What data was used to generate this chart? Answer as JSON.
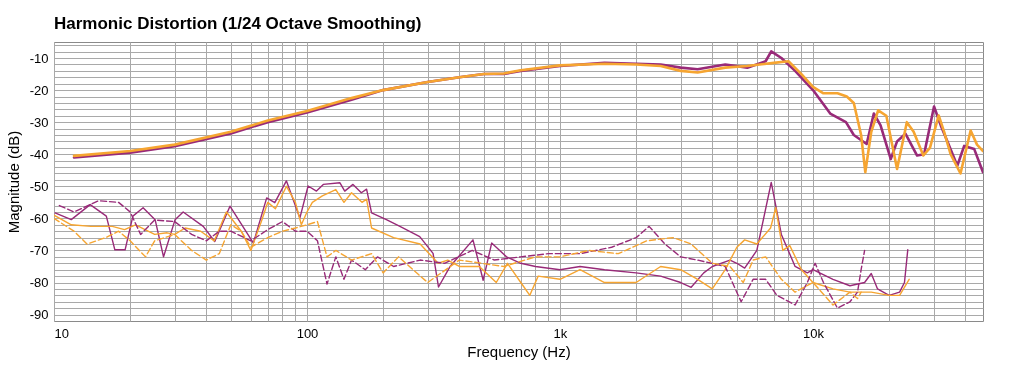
{
  "chart_data": {
    "type": "line",
    "title": "Harmonic Distortion (1/24 Octave Smoothing)",
    "xlabel": "Frequency (Hz)",
    "ylabel": "Magnitude (dB)",
    "log": "x",
    "grid": true,
    "marker": "none",
    "xlim": [
      10,
      47000
    ],
    "xticks": [
      10,
      {
        "value": 20,
        "label": null
      },
      {
        "value": 30,
        "label": null
      },
      {
        "value": 40,
        "label": null
      },
      {
        "value": 50,
        "label": null
      },
      {
        "value": 60,
        "label": null
      },
      {
        "value": 70,
        "label": null
      },
      {
        "value": 80,
        "label": null
      },
      {
        "value": 90,
        "label": null
      },
      100,
      {
        "value": 200,
        "label": null
      },
      {
        "value": 300,
        "label": null
      },
      {
        "value": 400,
        "label": null
      },
      {
        "value": 500,
        "label": null
      },
      {
        "value": 600,
        "label": null
      },
      {
        "value": 700,
        "label": null
      },
      {
        "value": 800,
        "label": null
      },
      {
        "value": 900,
        "label": null
      },
      {
        "value": 1000,
        "label": "1k"
      },
      {
        "value": 2000,
        "label": null
      },
      {
        "value": 3000,
        "label": null
      },
      {
        "value": 4000,
        "label": null
      },
      {
        "value": 5000,
        "label": null
      },
      {
        "value": 6000,
        "label": null
      },
      {
        "value": 7000,
        "label": null
      },
      {
        "value": 8000,
        "label": null
      },
      {
        "value": 9000,
        "label": null
      },
      {
        "value": 10000,
        "label": "10k"
      },
      {
        "value": 20000,
        "label": null
      },
      {
        "value": 30000,
        "label": null
      },
      {
        "value": 40000,
        "label": null
      }
    ],
    "ylim": [
      -92,
      -5
    ],
    "yticks": [
      -90,
      {
        "value": -88,
        "label": null
      },
      {
        "value": -86,
        "label": null
      },
      {
        "value": -84,
        "label": null
      },
      {
        "value": -82,
        "label": null
      },
      -80,
      {
        "value": -78,
        "label": null
      },
      {
        "value": -76,
        "label": null
      },
      {
        "value": -74,
        "label": null
      },
      {
        "value": -72,
        "label": null
      },
      -70,
      {
        "value": -68,
        "label": null
      },
      {
        "value": -66,
        "label": null
      },
      {
        "value": -64,
        "label": null
      },
      {
        "value": -62,
        "label": null
      },
      -60,
      {
        "value": -58,
        "label": null
      },
      {
        "value": -56,
        "label": null
      },
      {
        "value": -54,
        "label": null
      },
      {
        "value": -52,
        "label": null
      },
      -50,
      {
        "value": -48,
        "label": null
      },
      {
        "value": -46,
        "label": null
      },
      {
        "value": -44,
        "label": null
      },
      {
        "value": -42,
        "label": null
      },
      -40,
      {
        "value": -38,
        "label": null
      },
      {
        "value": -36,
        "label": null
      },
      {
        "value": -34,
        "label": null
      },
      {
        "value": -32,
        "label": null
      },
      -30,
      {
        "value": -28,
        "label": null
      },
      {
        "value": -26,
        "label": null
      },
      {
        "value": -24,
        "label": null
      },
      {
        "value": -22,
        "label": null
      },
      -20,
      {
        "value": -18,
        "label": null
      },
      {
        "value": -16,
        "label": null
      },
      {
        "value": -14,
        "label": null
      },
      {
        "value": -12,
        "label": null
      },
      -10,
      {
        "value": -8,
        "label": null
      },
      {
        "value": -6,
        "label": null
      }
    ],
    "series": [
      {
        "color": "#982a78",
        "line_style": "solid",
        "x": [
          12,
          20,
          30,
          50,
          70,
          100,
          150,
          200,
          300,
          400,
          500,
          600,
          700,
          1000,
          1500,
          2000,
          2500,
          3000,
          3500,
          4500,
          5500,
          6500,
          6840,
          7500,
          8500,
          10000,
          11700,
          13500,
          14500,
          16300,
          17400,
          18500,
          20300,
          21500,
          23200,
          25800,
          27500,
          30100,
          32000,
          34000,
          37200,
          39600,
          43400,
          47000
        ],
        "values": [
          -41,
          -39.5,
          -37.5,
          -33.5,
          -30,
          -27,
          -23,
          -20,
          -17.5,
          -16,
          -15,
          -15,
          -14,
          -12.5,
          -11.5,
          -11.8,
          -12,
          -13,
          -13.5,
          -12,
          -13,
          -11,
          -7.9,
          -10,
          -14,
          -20,
          -27.3,
          -30,
          -34,
          -36.8,
          -27.3,
          -31,
          -41.5,
          -36,
          -33.6,
          -40.4,
          -40,
          -25.1,
          -31,
          -36,
          -43.6,
          -37.4,
          -38.4,
          -45.6
        ]
      },
      {
        "color": "#f6a531",
        "line_style": "solid",
        "x": [
          12,
          20,
          30,
          50,
          70,
          100,
          150,
          200,
          300,
          400,
          500,
          600,
          700,
          1000,
          1500,
          2000,
          2500,
          3000,
          3500,
          4500,
          5500,
          7000,
          8000,
          9000,
          10000,
          11000,
          12500,
          13600,
          14500,
          15500,
          16100,
          17000,
          18100,
          19500,
          21500,
          23500,
          25000,
          27300,
          29000,
          31400,
          33000,
          35000,
          38300,
          42000,
          44500,
          47000
        ],
        "values": [
          -40.5,
          -39,
          -37,
          -33,
          -29.5,
          -26.5,
          -22.5,
          -20,
          -17.5,
          -16,
          -15,
          -14.8,
          -13.8,
          -12.3,
          -11.8,
          -12,
          -12.5,
          -14,
          -14.5,
          -13,
          -12.5,
          -11.5,
          -11,
          -15,
          -19,
          -21,
          -21,
          -22,
          -24,
          -34,
          -45.6,
          -33,
          -26.3,
          -28,
          -44.6,
          -30,
          -33,
          -40.4,
          -38,
          -27.9,
          -33,
          -40,
          -46,
          -32.6,
          -37,
          -39
        ]
      },
      {
        "color": "#982a78",
        "line_style": "solid",
        "x": [
          10.1,
          11.7,
          13.9,
          16.1,
          17.4,
          19.1,
          20.5,
          22.5,
          25.1,
          27.1,
          30.1,
          32.4,
          38.9,
          43.2,
          49.6,
          61.4,
          69.3,
          74.6,
          82.9,
          93.7,
          101,
          109,
          116,
          135,
          141,
          152,
          164,
          172,
          180,
          206,
          233,
          279,
          315,
          331,
          367,
          453,
          497,
          537,
          615,
          700,
          800,
          1000,
          1200,
          1500,
          2000,
          2500,
          3000,
          3300,
          3700,
          4000,
          4700,
          5000,
          5370,
          6000,
          6840,
          7500,
          8500,
          9500,
          10000,
          12000,
          14000,
          16000,
          17000,
          18000,
          20000,
          22000,
          23000,
          23700
        ],
        "values": [
          -58.3,
          -60.4,
          -55.7,
          -59.3,
          -69.8,
          -69.8,
          -59.3,
          -56.7,
          -60.4,
          -72,
          -60.4,
          -58,
          -62.5,
          -67.2,
          -56.2,
          -67.7,
          -53.6,
          -55.1,
          -48.3,
          -59.9,
          -49.9,
          -51.5,
          -49.4,
          -48.9,
          -51.5,
          -49.4,
          -52,
          -50.9,
          -58.3,
          -60.4,
          -62.5,
          -65.7,
          -70.9,
          -81.4,
          -75.1,
          -66.7,
          -79.3,
          -67.7,
          -72,
          -74,
          -75,
          -76,
          -75,
          -76,
          -77,
          -78,
          -80,
          -81.5,
          -77,
          -75,
          -73,
          -74,
          -75.5,
          -70,
          -48.8,
          -65,
          -75,
          -77,
          -76,
          -79,
          -81,
          -80,
          -77.2,
          -82,
          -84,
          -83,
          -80,
          -69.8
        ]
      },
      {
        "color": "#f6a531",
        "line_style": "solid",
        "x": [
          10,
          11.7,
          14,
          17,
          19,
          21,
          25,
          28,
          30,
          33,
          38,
          43,
          48,
          55,
          60,
          66,
          70,
          75,
          83,
          90,
          95,
          100,
          105,
          115,
          130,
          140,
          150,
          165,
          172,
          180,
          220,
          280,
          330,
          360,
          400,
          480,
          560,
          620,
          700,
          760,
          820,
          1000,
          1200,
          1500,
          2000,
          2500,
          3000,
          3500,
          4000,
          4500,
          5000,
          5370,
          6000,
          6800,
          7130,
          7600,
          8100,
          9000,
          10000,
          12000,
          14000,
          17000,
          20000,
          22000,
          24000
        ],
        "values": [
          -59,
          -62,
          -62.5,
          -62.5,
          -63.5,
          -62,
          -65,
          -64.5,
          -65,
          -63,
          -64,
          -67,
          -58,
          -64,
          -70,
          -61,
          -55,
          -57,
          -50,
          -55,
          -62,
          -58,
          -55,
          -53,
          -51,
          -55,
          -52,
          -55,
          -54,
          -63,
          -66,
          -68,
          -74,
          -73,
          -75,
          -75,
          -80,
          -74,
          -80,
          -84,
          -78,
          -79,
          -76,
          -80,
          -80,
          -75,
          -76,
          -79,
          -82,
          -76,
          -69,
          -66.7,
          -68,
          -63,
          -56.7,
          -70,
          -68.5,
          -76,
          -80,
          -82,
          -83,
          -83,
          -84,
          -84,
          -79
        ]
      },
      {
        "color": "#982a78",
        "line_style": "dashed",
        "x": [
          10.5,
          12,
          15,
          18,
          20,
          22,
          25,
          30,
          35,
          40,
          45,
          50,
          60,
          70,
          80,
          90,
          100,
          110,
          120,
          130,
          140,
          150,
          170,
          190,
          220,
          280,
          350,
          450,
          550,
          700,
          900,
          1200,
          1600,
          2000,
          2250,
          2600,
          3000,
          3500,
          4500,
          5200,
          5800,
          6500,
          7200,
          8500,
          9500,
          10200,
          11000,
          12500,
          14000,
          15000,
          15500,
          16000
        ],
        "values": [
          -56,
          -58,
          -54.5,
          -55,
          -58,
          -65,
          -60.5,
          -61,
          -65,
          -67,
          -64,
          -64,
          -67,
          -63.5,
          -61,
          -64,
          -64,
          -67,
          -80.5,
          -72,
          -79,
          -73,
          -76,
          -72,
          -75,
          -73,
          -74,
          -70,
          -73,
          -72,
          -71,
          -71,
          -69,
          -66,
          -62.5,
          -68,
          -72,
          -73,
          -75,
          -86,
          -79,
          -79,
          -84,
          -87,
          -80,
          -74,
          -80,
          -88,
          -86,
          -83,
          -76,
          -70
        ]
      },
      {
        "color": "#f6a531",
        "line_style": "dashed",
        "x": [
          10,
          12,
          13.5,
          16,
          18,
          20,
          23,
          25,
          30,
          35,
          40,
          45,
          50,
          55,
          60,
          70,
          80,
          90,
          100,
          110,
          120,
          130,
          150,
          180,
          200,
          230,
          300,
          400,
          600,
          800,
          1000,
          1300,
          1700,
          2200,
          2800,
          3300,
          4000,
          4700,
          5300,
          5800,
          6500,
          7500,
          8500,
          10000,
          12000,
          14000,
          15000,
          15500
        ],
        "values": [
          -60,
          -64,
          -68,
          -66,
          -64,
          -67,
          -72,
          -67,
          -65,
          -70,
          -73,
          -71,
          -62,
          -64,
          -69,
          -66,
          -64,
          -63,
          -62,
          -61,
          -72,
          -70,
          -73,
          -71,
          -77,
          -72,
          -80,
          -73,
          -75,
          -72,
          -72,
          -70,
          -71,
          -67,
          -66,
          -68,
          -74,
          -75,
          -80,
          -73,
          -72,
          -79,
          -83,
          -80,
          -87,
          -83,
          -85,
          -83
        ]
      }
    ]
  }
}
